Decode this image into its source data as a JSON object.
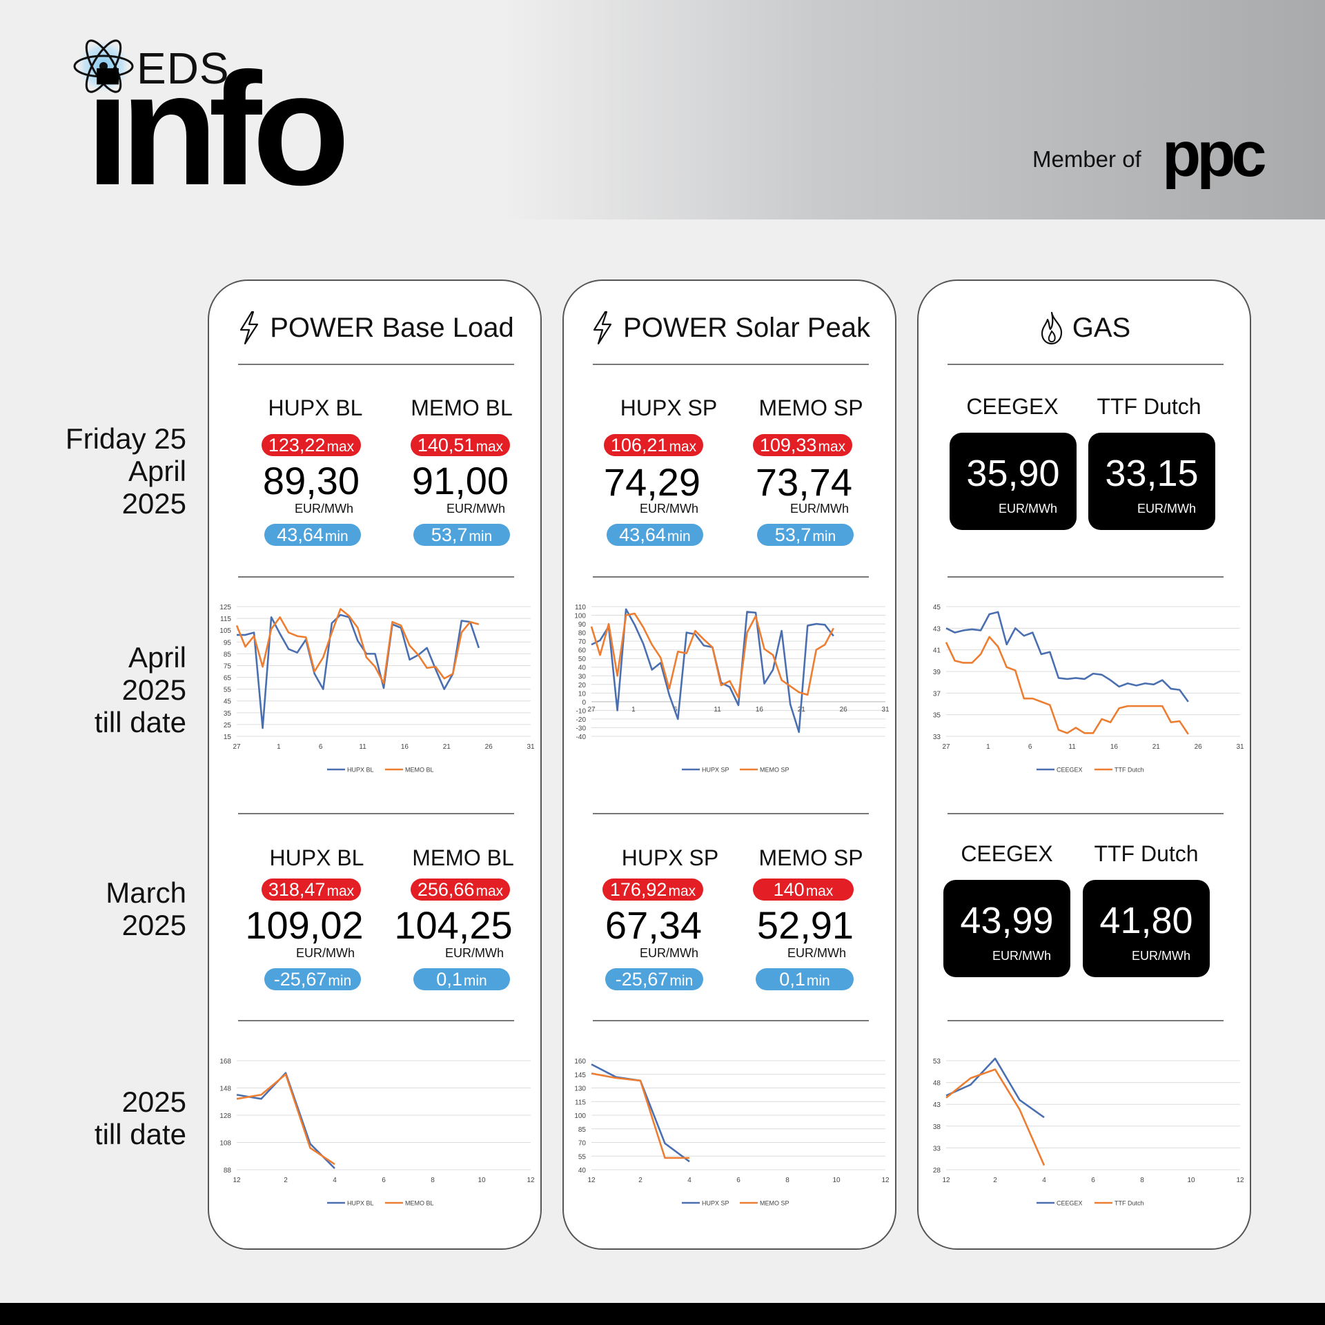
{
  "brand": {
    "logo_small": "EDS",
    "logo_big": "info",
    "member_of": "Member of",
    "parent": "ppc"
  },
  "row_labels": {
    "day": [
      "Friday 25",
      "April",
      "2025"
    ],
    "month_to_date": [
      "April",
      "2025",
      "till date"
    ],
    "prev_month": [
      "March",
      "2025"
    ],
    "ytd": [
      "2025",
      "till date"
    ]
  },
  "panels": {
    "base_load": {
      "title": "POWER Base Load",
      "icon": "lightning-icon",
      "day": {
        "left": {
          "label": "HUPX BL",
          "max": "123,22",
          "value": "89,30",
          "unit": "EUR/MWh",
          "min": "43,64"
        },
        "right": {
          "label": "MEMO BL",
          "max": "140,51",
          "value": "91,00",
          "unit": "EUR/MWh",
          "min": "53,7"
        }
      },
      "month": {
        "left": {
          "label": "HUPX BL",
          "max": "318,47",
          "value": "109,02",
          "unit": "EUR/MWh",
          "min": "-25,67"
        },
        "right": {
          "label": "MEMO BL",
          "max": "256,66",
          "value": "104,25",
          "unit": "EUR/MWh",
          "min": "0,1"
        }
      }
    },
    "solar_peak": {
      "title": "POWER Solar Peak",
      "icon": "lightning-icon",
      "day": {
        "left": {
          "label": "HUPX SP",
          "max": "106,21",
          "value": "74,29",
          "unit": "EUR/MWh",
          "min": "43,64"
        },
        "right": {
          "label": "MEMO SP",
          "max": "109,33",
          "value": "73,74",
          "unit": "EUR/MWh",
          "min": "53,7"
        }
      },
      "month": {
        "left": {
          "label": "HUPX SP",
          "max": "176,92",
          "value": "67,34",
          "unit": "EUR/MWh",
          "min": "-25,67"
        },
        "right": {
          "label": "MEMO SP",
          "max": "140",
          "value": "52,91",
          "unit": "EUR/MWh",
          "min": "0,1"
        }
      }
    },
    "gas": {
      "title": "GAS",
      "icon": "flame-icon",
      "day": {
        "left": {
          "label": "CEEGEX",
          "value": "35,90",
          "unit": "EUR/MWh"
        },
        "right": {
          "label": "TTF Dutch",
          "value": "33,15",
          "unit": "EUR/MWh"
        }
      },
      "month": {
        "left": {
          "label": "CEEGEX",
          "value": "43,99",
          "unit": "EUR/MWh"
        },
        "right": {
          "label": "TTF Dutch",
          "value": "41,80",
          "unit": "EUR/MWh"
        }
      }
    }
  },
  "labels": {
    "max": "max",
    "min": "min"
  },
  "colors": {
    "series1": "#4a6fb0",
    "series2": "#ed7d31",
    "max_badge": "#e31e24",
    "min_badge": "#4fa3dc"
  },
  "chart_data": [
    {
      "id": "bl_month",
      "type": "line",
      "x_ticks": [
        "27",
        "1",
        "6",
        "11",
        "16",
        "21",
        "26",
        "31"
      ],
      "y_ticks": [
        125,
        115,
        105,
        95,
        85,
        75,
        65,
        55,
        45,
        35,
        25,
        15
      ],
      "ylim": [
        15,
        125
      ],
      "xlim": [
        0,
        34
      ],
      "series": [
        {
          "name": "HUPX BL",
          "x": [
            0,
            1,
            2,
            3,
            4,
            5,
            6,
            7,
            8,
            9,
            10,
            11,
            12,
            13,
            14,
            15,
            16,
            17,
            18,
            19,
            20,
            21,
            22,
            23,
            24,
            25,
            26,
            27,
            28
          ],
          "values": [
            101,
            101,
            103,
            22,
            116,
            102,
            89,
            86,
            97,
            68,
            55,
            111,
            118,
            116,
            96,
            85,
            85,
            56,
            110,
            107,
            80,
            84,
            90,
            72,
            55,
            68,
            113,
            112,
            90
          ]
        },
        {
          "name": "MEMO BL",
          "x": [
            0,
            1,
            2,
            3,
            4,
            5,
            6,
            7,
            8,
            9,
            10,
            11,
            12,
            13,
            14,
            15,
            16,
            17,
            18,
            19,
            20,
            21,
            22,
            23,
            24,
            25,
            26,
            27,
            28
          ],
          "values": [
            109,
            91,
            100,
            74,
            106,
            116,
            103,
            100,
            99,
            70,
            82,
            103,
            123,
            117,
            107,
            82,
            74,
            60,
            112,
            109,
            92,
            84,
            73,
            74,
            64,
            68,
            103,
            112,
            110
          ]
        }
      ],
      "legend": [
        "HUPX BL",
        "MEMO BL"
      ],
      "legend_position": "bottom"
    },
    {
      "id": "sp_month",
      "type": "line",
      "x_ticks": [
        "27",
        "1",
        "6",
        "11",
        "16",
        "21",
        "26",
        "31"
      ],
      "y_ticks": [
        110,
        100,
        90,
        80,
        70,
        60,
        50,
        40,
        30,
        20,
        10,
        0,
        -10,
        -20,
        -30,
        -40
      ],
      "ylim": [
        -40,
        110
      ],
      "xlim": [
        0,
        34
      ],
      "series": [
        {
          "name": "HUPX SP",
          "x": [
            0,
            1,
            2,
            3,
            4,
            5,
            6,
            7,
            8,
            9,
            10,
            11,
            12,
            13,
            14,
            15,
            16,
            17,
            18,
            19,
            20,
            21,
            22,
            23,
            24,
            25,
            26,
            27,
            28
          ],
          "values": [
            66,
            71,
            87,
            -10,
            107,
            89,
            67,
            37,
            45,
            8,
            -20,
            80,
            78,
            65,
            63,
            22,
            17,
            -4,
            104,
            103,
            21,
            37,
            82,
            -3,
            -35,
            88,
            90,
            89,
            76
          ]
        },
        {
          "name": "MEMO SP",
          "x": [
            0,
            1,
            2,
            3,
            4,
            5,
            6,
            7,
            8,
            9,
            10,
            11,
            12,
            13,
            14,
            15,
            16,
            17,
            18,
            19,
            20,
            21,
            22,
            23,
            24,
            25,
            26,
            27,
            28
          ],
          "values": [
            87,
            54,
            90,
            30,
            100,
            102,
            86,
            66,
            51,
            15,
            58,
            56,
            82,
            72,
            63,
            19,
            24,
            5,
            80,
            99,
            61,
            54,
            25,
            18,
            11,
            8,
            60,
            66,
            85
          ]
        }
      ],
      "legend": [
        "HUPX SP",
        "MEMO SP"
      ],
      "legend_position": "bottom"
    },
    {
      "id": "gas_month",
      "type": "line",
      "x_ticks": [
        "27",
        "1",
        "6",
        "11",
        "16",
        "21",
        "26",
        "31"
      ],
      "y_ticks": [
        45,
        43,
        41,
        39,
        37,
        35,
        33
      ],
      "ylim": [
        33,
        45
      ],
      "xlim": [
        0,
        34
      ],
      "series": [
        {
          "name": "CEEGEX",
          "x": [
            0,
            1,
            2,
            3,
            4,
            5,
            6,
            7,
            8,
            9,
            10,
            11,
            12,
            13,
            14,
            15,
            16,
            17,
            18,
            19,
            20,
            21,
            22,
            23,
            24,
            25,
            26,
            27,
            28
          ],
          "values": [
            43.0,
            42.6,
            42.8,
            42.9,
            42.8,
            44.3,
            44.5,
            41.5,
            43.0,
            42.3,
            42.6,
            40.6,
            40.8,
            38.4,
            38.3,
            38.4,
            38.3,
            38.8,
            38.7,
            38.2,
            37.6,
            37.9,
            37.7,
            37.9,
            37.8,
            38.2,
            37.4,
            37.3,
            36.2
          ]
        },
        {
          "name": "TTF Dutch",
          "x": [
            0,
            1,
            2,
            3,
            4,
            5,
            6,
            7,
            8,
            9,
            10,
            11,
            12,
            13,
            14,
            15,
            16,
            17,
            18,
            19,
            20,
            21,
            22,
            23,
            24,
            25,
            26,
            27,
            28
          ],
          "values": [
            41.7,
            40.0,
            39.8,
            39.8,
            40.6,
            42.2,
            41.3,
            39.4,
            39.1,
            36.5,
            36.5,
            36.2,
            35.9,
            33.6,
            33.3,
            33.8,
            33.3,
            33.3,
            34.6,
            34.3,
            35.6,
            35.8,
            35.8,
            35.8,
            35.8,
            35.8,
            34.3,
            34.4,
            33.2
          ]
        }
      ],
      "legend": [
        "CEEGEX",
        "TTF Dutch"
      ],
      "legend_position": "bottom"
    },
    {
      "id": "bl_ytd",
      "type": "line",
      "x_ticks": [
        "12",
        "2",
        "4",
        "6",
        "8",
        "10",
        "12"
      ],
      "y_ticks": [
        168,
        148,
        128,
        108,
        88
      ],
      "ylim": [
        88,
        168
      ],
      "xlim": [
        0,
        12
      ],
      "series": [
        {
          "name": "HUPX BL",
          "x": [
            0,
            1,
            2,
            3,
            4
          ],
          "values": [
            143,
            140,
            159,
            107,
            89
          ]
        },
        {
          "name": "MEMO BL",
          "x": [
            0,
            1,
            2,
            3,
            4
          ],
          "values": [
            140,
            143,
            158,
            104,
            92
          ]
        }
      ],
      "legend": [
        "HUPX BL",
        "MEMO BL"
      ],
      "legend_position": "bottom"
    },
    {
      "id": "sp_ytd",
      "type": "line",
      "x_ticks": [
        "12",
        "2",
        "4",
        "6",
        "8",
        "10",
        "12"
      ],
      "y_ticks": [
        160,
        145,
        130,
        115,
        100,
        85,
        70,
        55,
        40
      ],
      "ylim": [
        40,
        160
      ],
      "xlim": [
        0,
        12
      ],
      "series": [
        {
          "name": "HUPX SP",
          "x": [
            0,
            1,
            2,
            3,
            4
          ],
          "values": [
            156,
            142,
            138,
            69,
            49
          ]
        },
        {
          "name": "MEMO SP",
          "x": [
            0,
            1,
            2,
            3,
            4
          ],
          "values": [
            146,
            141,
            138,
            53,
            53
          ]
        }
      ],
      "legend": [
        "HUPX SP",
        "MEMO SP"
      ],
      "legend_position": "bottom"
    },
    {
      "id": "gas_ytd",
      "type": "line",
      "x_ticks": [
        "12",
        "2",
        "4",
        "6",
        "8",
        "10",
        "12"
      ],
      "y_ticks": [
        53,
        48,
        43,
        38,
        33,
        28
      ],
      "ylim": [
        28,
        53
      ],
      "xlim": [
        0,
        12
      ],
      "series": [
        {
          "name": "CEEGEX",
          "x": [
            0,
            1,
            2,
            3,
            4
          ],
          "values": [
            45.0,
            47.5,
            53.5,
            44.0,
            40.0
          ]
        },
        {
          "name": "TTF Dutch",
          "x": [
            0,
            1,
            2,
            3,
            4
          ],
          "values": [
            44.5,
            49.0,
            51.0,
            41.8,
            29.0
          ]
        }
      ],
      "legend": [
        "CEEGEX",
        "TTF Dutch"
      ],
      "legend_position": "bottom"
    }
  ]
}
